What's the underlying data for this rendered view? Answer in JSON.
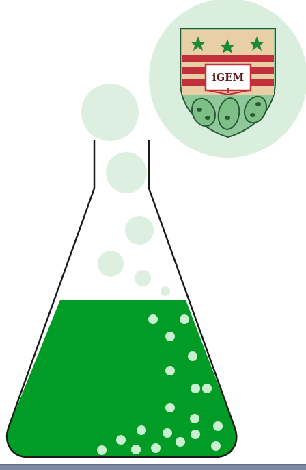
{
  "logo": {
    "text": "iGEM",
    "icon": "igem-shield-logo"
  },
  "colors": {
    "liquid": "#009c26",
    "liquid_dark": "#007a1c",
    "bubble_light": "#dcefe0",
    "bubble_in_liquid": "#c9f0cf",
    "logo_circle": "#d9eedc",
    "shield_green": "#8fc89a",
    "shield_red": "#c2313b",
    "shield_tan": "#e8cfa6",
    "star": "#1d8a3a",
    "outline": "#1a1a1a",
    "bottom_bar": "#7d8aa2"
  },
  "illustration": {
    "subject": "erlenmeyer-flask",
    "icons": [
      "flask-icon",
      "bubble-icon",
      "igem-shield-logo",
      "star-icon",
      "book-icon",
      "bean-icon"
    ]
  }
}
